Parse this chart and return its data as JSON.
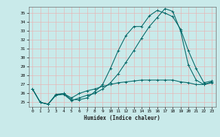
{
  "xlabel": "Humidex (Indice chaleur)",
  "ylabel": "",
  "xlim": [
    -0.5,
    23.5
  ],
  "ylim": [
    24.5,
    35.7
  ],
  "yticks": [
    25,
    26,
    27,
    28,
    29,
    30,
    31,
    32,
    33,
    34,
    35
  ],
  "xticks": [
    0,
    1,
    2,
    3,
    4,
    5,
    6,
    7,
    8,
    9,
    10,
    11,
    12,
    13,
    14,
    15,
    16,
    17,
    18,
    19,
    20,
    21,
    22,
    23
  ],
  "bg_color": "#c9eaea",
  "grid_color": "#e8b4b4",
  "line_color": "#006666",
  "line1_x": [
    0,
    1,
    2,
    3,
    4,
    5,
    6,
    7,
    8,
    9,
    10,
    11,
    12,
    13,
    14,
    15,
    16,
    17,
    18,
    19,
    20,
    21,
    22,
    23
  ],
  "line1_y": [
    26.5,
    25.0,
    24.8,
    25.8,
    26.0,
    25.3,
    25.3,
    25.5,
    26.2,
    27.0,
    28.8,
    30.8,
    32.5,
    33.5,
    33.5,
    34.7,
    35.3,
    35.0,
    34.6,
    33.2,
    30.8,
    28.8,
    27.2,
    27.4
  ],
  "line2_x": [
    0,
    1,
    2,
    3,
    4,
    5,
    6,
    7,
    8,
    9,
    10,
    11,
    12,
    13,
    14,
    15,
    16,
    17,
    18,
    19,
    20,
    21,
    22,
    23
  ],
  "line2_y": [
    26.5,
    25.0,
    24.8,
    25.8,
    25.9,
    25.2,
    25.5,
    25.8,
    26.0,
    26.5,
    27.2,
    28.2,
    29.5,
    30.8,
    32.2,
    33.5,
    34.5,
    35.5,
    35.2,
    33.0,
    29.2,
    27.5,
    27.0,
    27.3
  ],
  "line3_x": [
    0,
    1,
    2,
    3,
    4,
    5,
    6,
    7,
    8,
    9,
    10,
    11,
    12,
    13,
    14,
    15,
    16,
    17,
    18,
    19,
    20,
    21,
    22,
    23
  ],
  "line3_y": [
    26.5,
    25.0,
    24.8,
    25.9,
    26.0,
    25.5,
    26.0,
    26.3,
    26.5,
    26.8,
    27.0,
    27.2,
    27.3,
    27.4,
    27.5,
    27.5,
    27.5,
    27.5,
    27.5,
    27.3,
    27.2,
    27.0,
    27.0,
    27.2
  ],
  "figsize": [
    3.2,
    2.0
  ],
  "dpi": 100
}
